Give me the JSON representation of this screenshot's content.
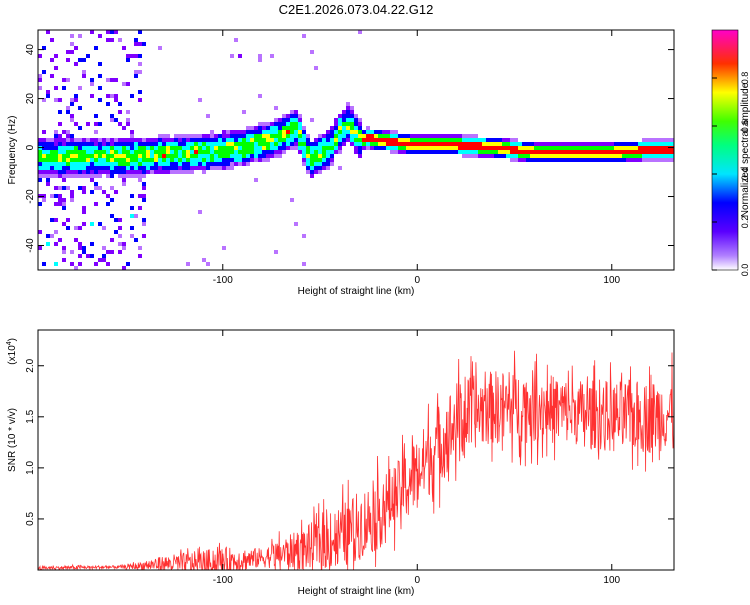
{
  "title": "C2E1.2026.073.04.22.G12",
  "chart_data": [
    {
      "type": "heatmap",
      "title": "C2E1.2026.073.04.22.G12",
      "xlabel": "Height of straight line (km)",
      "ylabel": "Frequency (Hz)",
      "xlim": [
        -195,
        132
      ],
      "ylim": [
        -50,
        48
      ],
      "xticks": [
        -100,
        0,
        100
      ],
      "xtick_labels": [
        "-100",
        "0",
        "100"
      ],
      "yticks": [
        -40,
        -20,
        0,
        20,
        40
      ],
      "ytick_labels": [
        "-40",
        "-20",
        "0",
        "20",
        "40"
      ],
      "colorbar": {
        "label": "Normalized spectral amplitude",
        "range": [
          0,
          1
        ],
        "ticks": [
          0,
          0.2,
          0.4,
          0.6,
          0.8
        ],
        "tick_labels": [
          "0.0",
          "0.2",
          "0.4",
          "0.6",
          "0.8"
        ],
        "colors": [
          "#ffffff",
          "#7f00ff",
          "#0000ff",
          "#00ffff",
          "#00ff00",
          "#ffff00",
          "#ff0000",
          "#ff00ff"
        ]
      },
      "ridge": {
        "x": [
          -170,
          -150,
          -130,
          -110,
          -90,
          -75,
          -62,
          -55,
          -50,
          -45,
          -40,
          -35,
          -30,
          -25,
          -20,
          -10,
          0,
          20,
          40,
          60,
          80,
          100,
          120,
          132
        ],
        "y": [
          -4,
          -4,
          -3,
          -2,
          0,
          3,
          8,
          -5,
          -3,
          0,
          6,
          10,
          3,
          4,
          3,
          2,
          1,
          1,
          0,
          -2,
          -2,
          -2,
          -1,
          -1
        ]
      }
    },
    {
      "type": "line",
      "xlabel": "Height of straight line (km)",
      "ylabel": "SNR (10 * v/v)",
      "scale_label": "(x10",
      "scale_exp": "4",
      "scale_close": ")",
      "xlim": [
        -195,
        132
      ],
      "ylim": [
        0,
        2.35
      ],
      "xticks": [
        -100,
        0,
        100
      ],
      "xtick_labels": [
        "-100",
        "0",
        "100"
      ],
      "yticks": [
        0.5,
        1.0,
        1.5,
        2.0
      ],
      "ytick_labels": [
        "0.5",
        "1.0",
        "1.5",
        "2.0"
      ],
      "color": "#ff3030",
      "trend": {
        "x": [
          -195,
          -150,
          -130,
          -100,
          -80,
          -60,
          -40,
          -20,
          -10,
          0,
          10,
          20,
          30,
          40,
          60,
          80,
          100,
          120,
          132
        ],
        "mean": [
          0.02,
          0.03,
          0.06,
          0.08,
          0.12,
          0.2,
          0.32,
          0.55,
          0.75,
          0.95,
          1.2,
          1.45,
          1.55,
          1.6,
          1.6,
          1.55,
          1.5,
          1.5,
          1.55
        ],
        "spread": [
          0.02,
          0.02,
          0.1,
          0.18,
          0.12,
          0.25,
          0.4,
          0.45,
          0.4,
          0.45,
          0.5,
          0.5,
          0.45,
          0.45,
          0.45,
          0.4,
          0.45,
          0.45,
          0.45
        ]
      }
    }
  ]
}
